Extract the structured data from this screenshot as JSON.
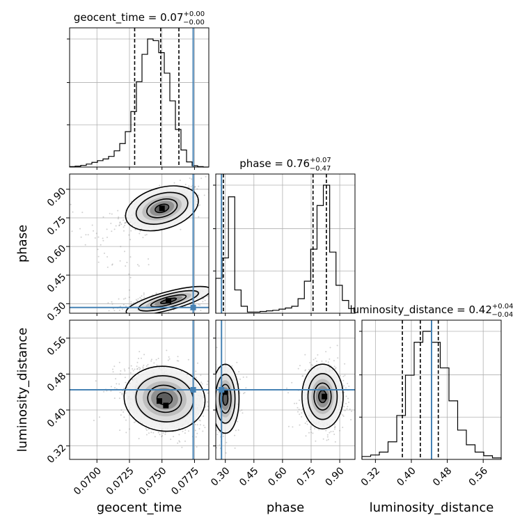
{
  "chart_data": {
    "type": "corner",
    "grid": true,
    "truth_color": "#4682b4",
    "parameters": [
      {
        "key": "geocent_time",
        "xlabel": "geocent_time",
        "range": [
          0.0679,
          0.0786
        ],
        "ticks": [
          "0.0700",
          "0.0725",
          "0.0750",
          "0.0775"
        ],
        "tick_values": [
          0.07,
          0.0725,
          0.075,
          0.0775
        ],
        "truth": 0.0774,
        "quantiles": [
          0.0729,
          0.0749,
          0.0763
        ],
        "title": {
          "main": "geocent_time = 0.07",
          "sup": "+0.00",
          "sub": "−0.00"
        },
        "hist": [
          1,
          2,
          4,
          7,
          11,
          15,
          19,
          25,
          38,
          55,
          83,
          130,
          200,
          264,
          300,
          296,
          268,
          220,
          155,
          88,
          40,
          12,
          3,
          1,
          0
        ]
      },
      {
        "key": "phase",
        "xlabel": "phase",
        "ylabel": "phase",
        "range": [
          0.25,
          0.98
        ],
        "ticks": [
          "0.30",
          "0.45",
          "0.60",
          "0.75",
          "0.90"
        ],
        "tick_values": [
          0.3,
          0.45,
          0.6,
          0.75,
          0.9
        ],
        "truth": 0.28,
        "quantiles": [
          0.29,
          0.76,
          0.83
        ],
        "title": {
          "main": "phase = 0.76",
          "sup": "+0.07",
          "sub": "−0.47"
        },
        "hist": [
          60,
          95,
          200,
          40,
          12,
          2,
          2,
          3,
          4,
          5,
          7,
          9,
          12,
          25,
          55,
          110,
          185,
          220,
          105,
          48,
          22,
          8
        ]
      },
      {
        "key": "luminosity_distance",
        "xlabel": "luminosity_distance",
        "ylabel": "luminosity_distance",
        "range": [
          0.29,
          0.6
        ],
        "ticks": [
          "0.32",
          "0.40",
          "0.48",
          "0.56"
        ],
        "tick_values": [
          0.32,
          0.4,
          0.48,
          0.56
        ],
        "truth": 0.445,
        "quantiles": [
          0.38,
          0.42,
          0.46
        ],
        "title": {
          "main": "luminosity_distance = 0.42",
          "sup": "+0.04",
          "sub": "−0.04"
        },
        "hist": [
          4,
          6,
          10,
          24,
          60,
          115,
          160,
          175,
          160,
          125,
          80,
          40,
          20,
          10,
          5,
          2
        ]
      }
    ],
    "pairs": [
      {
        "x": "geocent_time",
        "y": "phase",
        "truth": [
          0.0774,
          0.28
        ],
        "modes": [
          {
            "cx": 0.075,
            "cy": 0.8,
            "sx": 0.0012,
            "sy": 0.045,
            "rho": 0.55,
            "w": 0.55
          },
          {
            "cx": 0.0755,
            "cy": 0.315,
            "sx": 0.0014,
            "sy": 0.02,
            "rho": 0.5,
            "w": 0.4
          },
          {
            "cx": 0.0705,
            "cy": 0.62,
            "sx": 0.0012,
            "sy": 0.08,
            "rho": -0.6,
            "w": 0.05
          }
        ],
        "peaks": [
          [
            0.075,
            0.8
          ],
          [
            0.0755,
            0.315
          ]
        ]
      },
      {
        "x": "geocent_time",
        "y": "luminosity_distance",
        "truth": [
          0.0774,
          0.445
        ],
        "modes": [
          {
            "cx": 0.0752,
            "cy": 0.425,
            "sx": 0.0013,
            "sy": 0.03,
            "rho": -0.25,
            "w": 1
          }
        ],
        "peaks": [
          [
            0.0748,
            0.42
          ],
          [
            0.0753,
            0.41
          ]
        ]
      },
      {
        "x": "phase",
        "y": "luminosity_distance",
        "truth": [
          0.28,
          0.445
        ],
        "modes": [
          {
            "cx": 0.3,
            "cy": 0.425,
            "sx": 0.03,
            "sy": 0.032,
            "rho": 0.0,
            "w": 0.35
          },
          {
            "cx": 0.81,
            "cy": 0.43,
            "sx": 0.045,
            "sy": 0.03,
            "rho": 0.0,
            "w": 0.65
          }
        ],
        "peaks": [
          [
            0.82,
            0.43
          ],
          [
            0.3,
            0.44
          ]
        ]
      }
    ]
  }
}
